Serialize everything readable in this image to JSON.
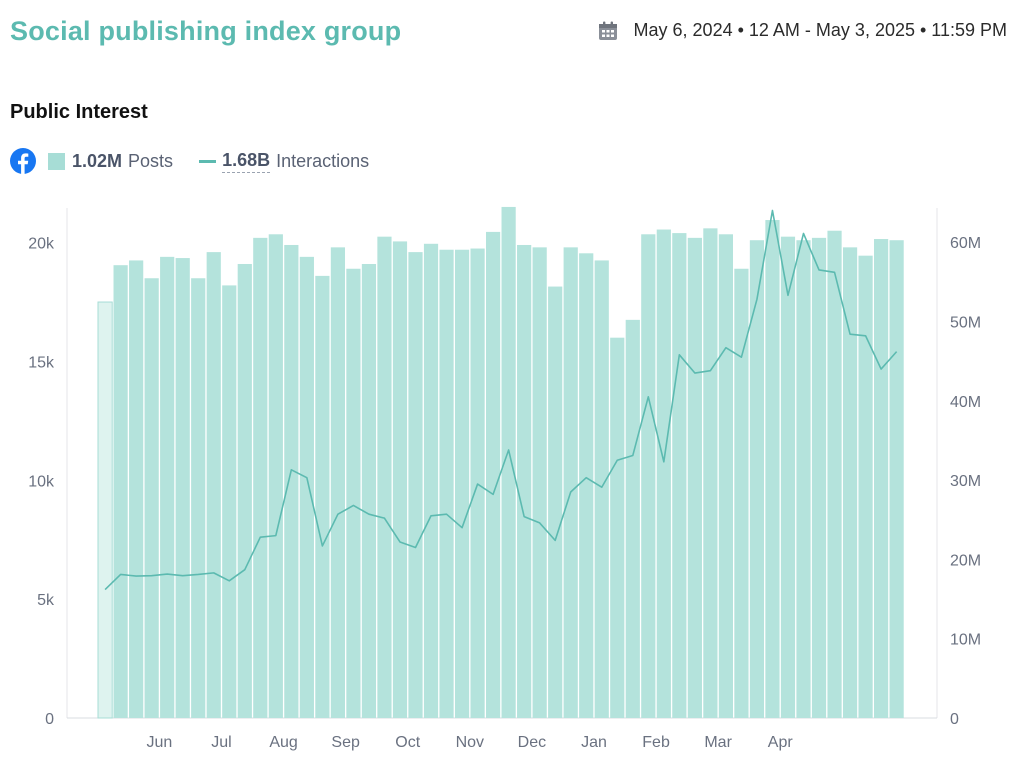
{
  "header": {
    "title": "Social publishing index group",
    "date_range": "May 6, 2024 • 12 AM - May 3, 2025 • 11:59 PM"
  },
  "section": {
    "title": "Public Interest"
  },
  "legend": {
    "posts_total": "1.02M",
    "posts_label": "Posts",
    "interactions_total": "1.68B",
    "interactions_label": "Interactions"
  },
  "colors": {
    "accent": "#5cbab0",
    "bar": "#b4e3dc",
    "bar_partial": "#def3ef",
    "facebook": "#1877f2"
  },
  "icons": [
    "calendar-icon",
    "facebook-icon"
  ],
  "chart_data": {
    "type": "bar+line",
    "x_tick_labels": [
      "Jun",
      "Jul",
      "Aug",
      "Sep",
      "Oct",
      "Nov",
      "Dec",
      "Jan",
      "Feb",
      "Mar",
      "Apr"
    ],
    "x_tick_week_index": [
      3.5,
      7.5,
      11.5,
      15.5,
      19.5,
      23.5,
      27.5,
      31.5,
      35.5,
      39.5,
      43.5
    ],
    "y_left": {
      "ticks": [
        "0",
        "5k",
        "10k",
        "15k",
        "20k"
      ],
      "tick_values": [
        0,
        5000,
        10000,
        15000,
        20000
      ],
      "range": [
        0,
        21500
      ]
    },
    "y_right": {
      "ticks": [
        "0",
        "10M",
        "20M",
        "30M",
        "40M",
        "50M",
        "60M"
      ],
      "tick_values": [
        0,
        10000000,
        20000000,
        30000000,
        40000000,
        50000000,
        60000000
      ],
      "range": [
        0,
        64500000
      ]
    },
    "series": [
      {
        "name": "Posts",
        "axis": "left",
        "type": "bar",
        "values": [
          17500,
          19050,
          19250,
          18500,
          19400,
          19350,
          18500,
          19600,
          18200,
          19100,
          20200,
          20350,
          19900,
          19400,
          18600,
          19800,
          18900,
          19100,
          20250,
          20050,
          19600,
          19950,
          19700,
          19700,
          19750,
          20450,
          21500,
          19900,
          19800,
          18150,
          19800,
          19550,
          19250,
          16000,
          16750,
          20350,
          20550,
          20400,
          20200,
          20600,
          20350,
          18900,
          20100,
          20950,
          20250,
          20100,
          20200,
          20500,
          19800,
          19450,
          20150,
          20100
        ]
      },
      {
        "name": "Interactions",
        "axis": "right",
        "type": "line",
        "values": [
          16200000,
          18100000,
          17900000,
          17950000,
          18150000,
          17950000,
          18100000,
          18300000,
          17300000,
          18700000,
          22800000,
          23000000,
          31300000,
          30300000,
          21700000,
          25700000,
          26800000,
          25700000,
          25200000,
          22200000,
          21500000,
          25500000,
          25700000,
          24000000,
          29500000,
          28200000,
          33800000,
          25400000,
          24600000,
          22400000,
          28500000,
          30300000,
          29100000,
          32500000,
          33100000,
          40500000,
          32300000,
          45800000,
          43500000,
          43800000,
          46700000,
          45500000,
          52800000,
          64000000,
          53300000,
          61100000,
          56500000,
          56200000,
          48400000,
          48200000,
          44000000,
          46200000
        ]
      }
    ]
  }
}
